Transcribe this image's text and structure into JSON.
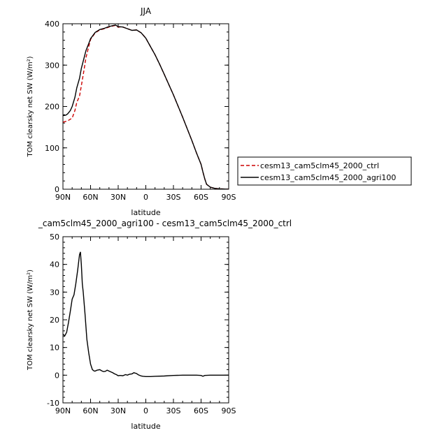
{
  "chart_data": [
    {
      "type": "line",
      "title": "JJA",
      "xlabel": "latitude",
      "ylabel": "TOM clearsky net SW (W/m²)",
      "xlim": [
        90,
        -90
      ],
      "ylim": [
        0,
        400
      ],
      "xticks": [
        90,
        60,
        30,
        0,
        -30,
        -60,
        -90
      ],
      "xtick_labels": [
        "90N",
        "60N",
        "30N",
        "0",
        "30S",
        "60S",
        "90S"
      ],
      "yticks": [
        0,
        100,
        200,
        300,
        400
      ],
      "ytick_labels": [
        "0",
        "100",
        "200",
        "300",
        "400"
      ],
      "legend_position": "right",
      "series": [
        {
          "name": "cesm13_cam5clm45_2000_ctrl",
          "color": "#cc0000",
          "dash": "dashed",
          "x": [
            90,
            85,
            80,
            77,
            75,
            72,
            70,
            67,
            65,
            62,
            60,
            55,
            50,
            45,
            40,
            35,
            33,
            30,
            25,
            20,
            15,
            10,
            5,
            0,
            -5,
            -10,
            -15,
            -20,
            -30,
            -40,
            -50,
            -55,
            -60,
            -62,
            -64,
            -66,
            -70,
            -75,
            -80,
            -90
          ],
          "y": [
            162,
            165,
            172,
            190,
            210,
            225,
            250,
            290,
            318,
            345,
            362,
            378,
            385,
            388,
            392,
            395,
            396,
            392,
            392,
            388,
            384,
            385,
            378,
            365,
            345,
            325,
            302,
            278,
            228,
            174,
            118,
            88,
            60,
            42,
            25,
            12,
            5,
            2,
            1,
            0
          ]
        },
        {
          "name": "cesm13_cam5clm45_2000_agri100",
          "color": "#000000",
          "dash": "solid",
          "x": [
            90,
            87,
            85,
            82,
            80,
            77,
            75,
            72,
            70,
            67,
            65,
            62,
            60,
            55,
            50,
            45,
            40,
            35,
            33,
            30,
            25,
            20,
            15,
            10,
            5,
            0,
            -5,
            -10,
            -15,
            -20,
            -30,
            -40,
            -50,
            -55,
            -60,
            -62,
            -64,
            -66,
            -70,
            -75,
            -80,
            -90
          ],
          "y": [
            178,
            179,
            182,
            190,
            200,
            222,
            245,
            268,
            292,
            318,
            335,
            352,
            364,
            379,
            386,
            389,
            393,
            396,
            397,
            393,
            392,
            388,
            384,
            385,
            378,
            365,
            345,
            325,
            302,
            278,
            228,
            174,
            118,
            88,
            60,
            42,
            25,
            12,
            5,
            2,
            1,
            0
          ]
        }
      ]
    },
    {
      "type": "line",
      "title": "_cam5clm45_2000_agri100 - cesm13_cam5clm45_2000_ctrl",
      "xlabel": "latitude",
      "ylabel": "TOM clearsky net SW (W/m²)",
      "xlim": [
        90,
        -90
      ],
      "ylim": [
        -10,
        50
      ],
      "xticks": [
        90,
        60,
        30,
        0,
        -30,
        -60,
        -90
      ],
      "xtick_labels": [
        "90N",
        "60N",
        "30N",
        "0",
        "30S",
        "60S",
        "90S"
      ],
      "yticks": [
        -10,
        0,
        10,
        20,
        30,
        40,
        50
      ],
      "ytick_labels": [
        "-10",
        "0",
        "10",
        "20",
        "30",
        "40",
        "50"
      ],
      "series": [
        {
          "color": "#000000",
          "dash": "solid",
          "x": [
            90,
            88,
            86,
            84,
            82,
            80,
            78,
            76,
            74,
            72,
            71,
            70,
            69,
            68,
            66,
            64,
            62,
            60,
            58,
            56,
            55,
            53,
            50,
            48,
            46,
            44,
            42,
            40,
            38,
            36,
            34,
            32,
            30,
            28,
            25,
            22,
            20,
            18,
            15,
            13,
            10,
            8,
            5,
            3,
            0,
            -5,
            -10,
            -20,
            -30,
            -40,
            -50,
            -55,
            -60,
            -62,
            -64,
            -70,
            -80,
            -90
          ],
          "y": [
            14.8,
            14.2,
            15.5,
            19,
            23,
            27.5,
            29,
            33,
            38,
            43.5,
            44.5,
            40,
            33,
            30,
            22,
            13,
            8,
            4,
            2,
            1.5,
            1.5,
            1.8,
            2,
            1.6,
            1.3,
            1.4,
            1.8,
            1.5,
            1.2,
            0.9,
            0.5,
            0.2,
            -0.2,
            -0.1,
            -0.2,
            0.2,
            0,
            0.3,
            0.5,
            0.9,
            0.6,
            0.1,
            -0.3,
            -0.4,
            -0.5,
            -0.5,
            -0.4,
            -0.3,
            -0.1,
            0,
            0,
            0,
            -0.1,
            -0.4,
            -0.1,
            0,
            0,
            0
          ]
        }
      ]
    }
  ]
}
